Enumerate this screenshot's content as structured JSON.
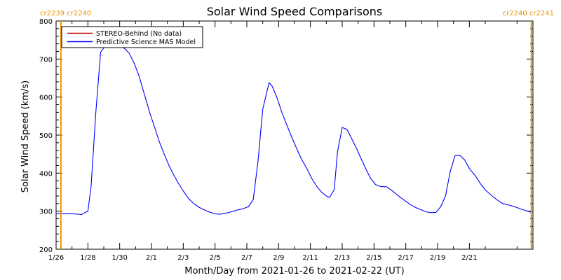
{
  "chart_data": {
    "type": "line",
    "title": "Solar Wind Speed Comparisons",
    "xlabel": "Month/Day from 2021-01-26 to 2021-02-22 (UT)",
    "ylabel": "Solar Wind Speed (km/s)",
    "x_start": "2021-01-26",
    "x_end": "2021-02-22",
    "xlim_days": [
      0,
      27.3
    ],
    "ylim": [
      200,
      800
    ],
    "y_ticks": [
      200,
      300,
      400,
      500,
      600,
      700,
      800
    ],
    "x_ticks": [
      {
        "day": 0,
        "label": "1/26"
      },
      {
        "day": 2,
        "label": "1/28"
      },
      {
        "day": 4,
        "label": "1/30"
      },
      {
        "day": 6,
        "label": "2/1"
      },
      {
        "day": 8,
        "label": "2/3"
      },
      {
        "day": 10,
        "label": "2/5"
      },
      {
        "day": 12,
        "label": "2/7"
      },
      {
        "day": 14,
        "label": "2/9"
      },
      {
        "day": 16,
        "label": "2/11"
      },
      {
        "day": 18,
        "label": "2/13"
      },
      {
        "day": 20,
        "label": "2/15"
      },
      {
        "day": 22,
        "label": "2/17"
      },
      {
        "day": 24,
        "label": "2/19"
      },
      {
        "day": 26,
        "label": "2/21"
      }
    ],
    "grid": false,
    "legend_position": "top-left",
    "series": [
      {
        "name": "STEREO-Behind (No data)",
        "color": "#c00000",
        "points": []
      },
      {
        "name": "Predictive Science MAS Model",
        "color": "#0000ff",
        "points": [
          [
            0.0,
            293
          ],
          [
            0.3,
            293
          ],
          [
            0.7,
            293
          ],
          [
            1.0,
            293
          ],
          [
            1.4,
            292
          ],
          [
            1.6,
            291
          ],
          [
            1.8,
            296
          ],
          [
            2.0,
            300
          ],
          [
            2.2,
            365
          ],
          [
            2.5,
            560
          ],
          [
            2.8,
            718
          ],
          [
            3.1,
            735
          ],
          [
            3.4,
            738
          ],
          [
            3.7,
            738
          ],
          [
            4.0,
            735
          ],
          [
            4.3,
            728
          ],
          [
            4.6,
            715
          ],
          [
            4.9,
            690
          ],
          [
            5.2,
            658
          ],
          [
            5.5,
            615
          ],
          [
            5.9,
            558
          ],
          [
            6.2,
            520
          ],
          [
            6.5,
            482
          ],
          [
            6.8,
            450
          ],
          [
            7.1,
            420
          ],
          [
            7.4,
            395
          ],
          [
            7.7,
            373
          ],
          [
            8.0,
            353
          ],
          [
            8.3,
            335
          ],
          [
            8.6,
            322
          ],
          [
            9.0,
            310
          ],
          [
            9.4,
            302
          ],
          [
            9.7,
            297
          ],
          [
            10.0,
            293
          ],
          [
            10.3,
            292
          ],
          [
            10.6,
            294
          ],
          [
            11.0,
            298
          ],
          [
            11.4,
            303
          ],
          [
            11.8,
            307
          ],
          [
            12.1,
            312
          ],
          [
            12.4,
            330
          ],
          [
            12.7,
            430
          ],
          [
            13.0,
            568
          ],
          [
            13.4,
            638
          ],
          [
            13.6,
            628
          ],
          [
            13.9,
            598
          ],
          [
            14.2,
            560
          ],
          [
            14.5,
            528
          ],
          [
            14.8,
            497
          ],
          [
            15.1,
            468
          ],
          [
            15.4,
            440
          ],
          [
            15.8,
            410
          ],
          [
            16.1,
            385
          ],
          [
            16.4,
            365
          ],
          [
            16.7,
            350
          ],
          [
            17.0,
            340
          ],
          [
            17.2,
            336
          ],
          [
            17.5,
            357
          ],
          [
            17.7,
            455
          ],
          [
            18.0,
            520
          ],
          [
            18.3,
            515
          ],
          [
            18.6,
            490
          ],
          [
            18.9,
            465
          ],
          [
            19.2,
            437
          ],
          [
            19.5,
            410
          ],
          [
            19.8,
            385
          ],
          [
            20.1,
            370
          ],
          [
            20.4,
            365
          ],
          [
            20.8,
            364
          ],
          [
            21.1,
            355
          ],
          [
            21.4,
            345
          ],
          [
            21.7,
            335
          ],
          [
            22.0,
            326
          ],
          [
            22.3,
            317
          ],
          [
            22.6,
            310
          ],
          [
            23.0,
            303
          ],
          [
            23.3,
            298
          ],
          [
            23.6,
            296
          ],
          [
            23.9,
            297
          ],
          [
            24.2,
            312
          ],
          [
            24.5,
            340
          ],
          [
            24.8,
            405
          ],
          [
            25.1,
            446
          ],
          [
            25.4,
            447
          ],
          [
            25.7,
            435
          ],
          [
            26.0,
            412
          ],
          [
            26.4,
            392
          ],
          [
            26.7,
            372
          ],
          [
            27.0,
            356
          ],
          [
            27.4,
            341
          ],
          [
            27.8,
            328
          ],
          [
            28.1,
            320
          ],
          [
            28.5,
            316
          ],
          [
            28.9,
            311
          ],
          [
            29.2,
            306
          ],
          [
            29.6,
            301
          ],
          [
            29.9,
            297
          ]
        ]
      }
    ],
    "carrington_markers": [
      {
        "label_left": "cr2239",
        "label_right": "cr2240",
        "side": "left",
        "day": 0.3
      },
      {
        "label_left": "cr2240",
        "label_right": "cr2241",
        "side": "right",
        "day": 29.9
      }
    ],
    "marker_color": "#e69500"
  }
}
